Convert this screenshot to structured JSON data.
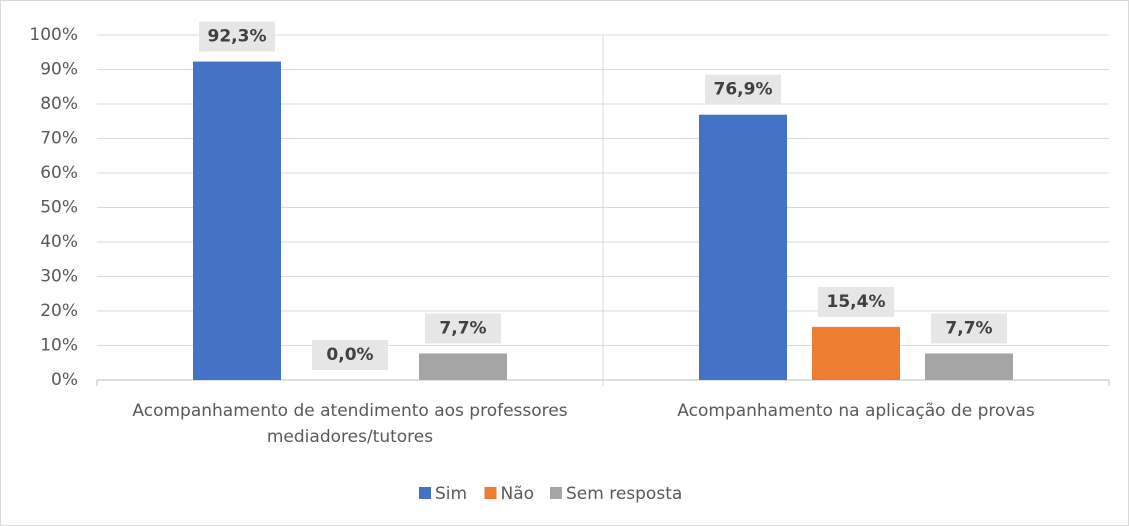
{
  "chart_data": {
    "type": "bar",
    "categories": [
      "Acompanhamento de atendimento aos professores mediadores/tutores",
      "Acompanhamento na aplicação de provas"
    ],
    "series": [
      {
        "name": "Sim",
        "color": "#4472c4",
        "values": [
          92.3,
          76.9
        ],
        "value_labels": [
          "92,3%",
          "76,9%"
        ]
      },
      {
        "name": "Não",
        "color": "#ed7d31",
        "values": [
          0,
          15.4
        ],
        "value_labels": [
          "0,0%",
          "15,4%"
        ]
      },
      {
        "name": "Sem resposta",
        "color": "#a5a5a5",
        "values": [
          7.7,
          7.7
        ],
        "value_labels": [
          "7,7%",
          "7,7%"
        ]
      }
    ],
    "ylim": [
      0,
      100
    ],
    "yticks": [
      {
        "value": 0,
        "label": "0%"
      },
      {
        "value": 10,
        "label": "10%"
      },
      {
        "value": 20,
        "label": "20%"
      },
      {
        "value": 30,
        "label": "30%"
      },
      {
        "value": 40,
        "label": "40%"
      },
      {
        "value": 50,
        "label": "50%"
      },
      {
        "value": 60,
        "label": "60%"
      },
      {
        "value": 70,
        "label": "70%"
      },
      {
        "value": 80,
        "label": "80%"
      },
      {
        "value": 90,
        "label": "90%"
      },
      {
        "value": 100,
        "label": "100%"
      }
    ],
    "grid": true,
    "legend": "bottom"
  }
}
